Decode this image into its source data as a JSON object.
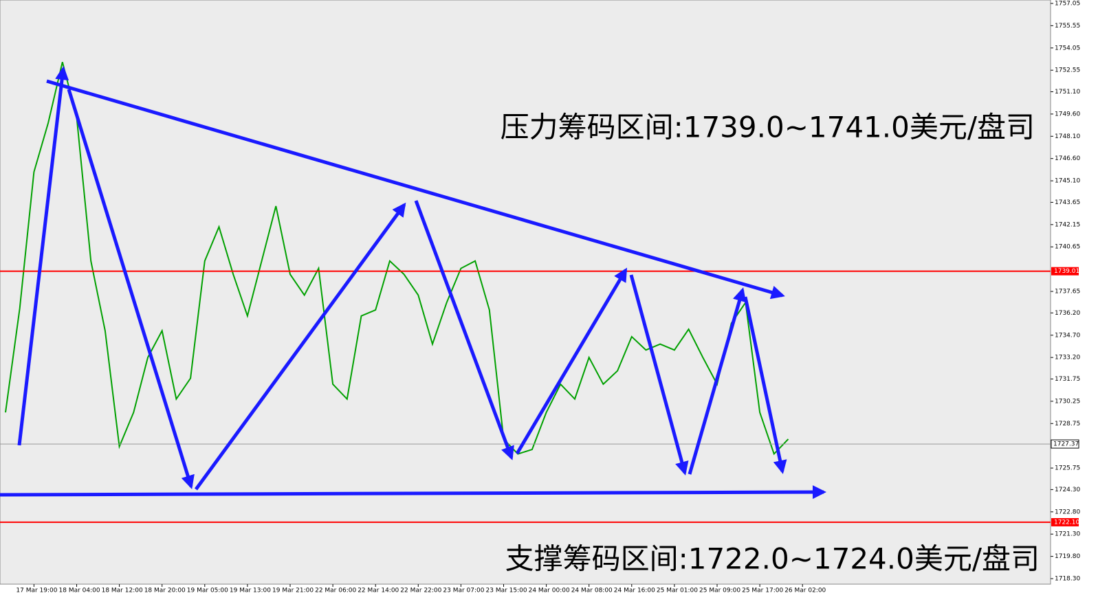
{
  "chart_data": {
    "type": "line",
    "annotations": [
      "压力筹码区间:1739.0~1741.0美元/盘司",
      "支撑筹码区间:1722.0~1724.0美元/盘司"
    ],
    "categories": [
      null,
      null,
      "17 Mar 19:00",
      null,
      null,
      "18 Mar 04:00",
      null,
      null,
      "18 Mar 12:00",
      null,
      null,
      "18 Mar 20:00",
      null,
      null,
      "19 Mar 05:00",
      null,
      null,
      "19 Mar 13:00",
      null,
      null,
      "19 Mar 21:00",
      null,
      null,
      "22 Mar 06:00",
      null,
      null,
      "22 Mar 14:00",
      null,
      null,
      "22 Mar 22:00",
      null,
      null,
      "23 Mar 07:00",
      null,
      null,
      "23 Mar 15:00",
      null,
      null,
      "24 Mar 00:00",
      null,
      null,
      "24 Mar 08:00",
      null,
      null,
      "24 Mar 16:00",
      null,
      null,
      "25 Mar 01:00",
      null,
      null,
      "25 Mar 09:00",
      null,
      null,
      "25 Mar 17:00",
      null,
      null,
      "26 Mar 02:00"
    ],
    "series": [
      {
        "color": "#00a000",
        "values": [
          1729.5,
          1736.5,
          1745.7,
          1749.0,
          1753.1,
          1749.4,
          1739.7,
          1735.0,
          1727.2,
          1729.5,
          1733.2,
          1735.0,
          1730.4,
          1731.8,
          1739.7,
          1742.0,
          1738.8,
          1736.0,
          1739.7,
          1743.4,
          1738.8,
          1737.4,
          1739.2,
          1731.4,
          1730.4,
          1736.0,
          1736.4,
          1739.7,
          1738.8,
          1737.4,
          1734.1,
          1736.9,
          1739.2,
          1739.7,
          1736.4,
          1727.7,
          1726.7,
          1727.0,
          1729.5,
          1731.4,
          1730.4,
          1733.2,
          1731.4,
          1732.3,
          1734.6,
          1733.7,
          1734.1,
          1733.7,
          1735.1,
          1733.2,
          1731.4,
          1735.5,
          1736.9,
          1729.5,
          1726.7,
          1727.7,
          null
        ]
      }
    ],
    "ylim": [
      1717.93,
      1757.28
    ],
    "yticks": [
      1757.05,
      1755.55,
      1754.05,
      1752.55,
      {
        "value": 1751.1,
        "label": "1751.10"
      },
      {
        "value": 1749.6,
        "label": "1749.60"
      },
      {
        "value": 1748.1,
        "label": "1748.10"
      },
      {
        "value": 1746.6,
        "label": "1746.60"
      },
      {
        "value": 1745.1,
        "label": "1745.10"
      },
      1743.65,
      1742.15,
      1740.65,
      1737.65,
      {
        "value": 1736.2,
        "label": "1736.20"
      },
      {
        "value": 1734.7,
        "label": "1734.70"
      },
      {
        "value": 1733.2,
        "label": "1733.20"
      },
      1731.75,
      1730.25,
      1728.75,
      1725.75,
      {
        "value": 1724.3,
        "label": "1724.30"
      },
      {
        "value": 1722.8,
        "label": "1722.80"
      },
      {
        "value": 1721.3,
        "label": "1721.30"
      },
      {
        "value": 1719.8,
        "label": "1719.80"
      },
      {
        "value": 1718.3,
        "label": "1718.30"
      }
    ],
    "hlines": [
      1739.01,
      {
        "value": 1722.1,
        "label": "1722.10"
      }
    ],
    "hline_color": "#ff0000",
    "last_price": 1727.37
  }
}
